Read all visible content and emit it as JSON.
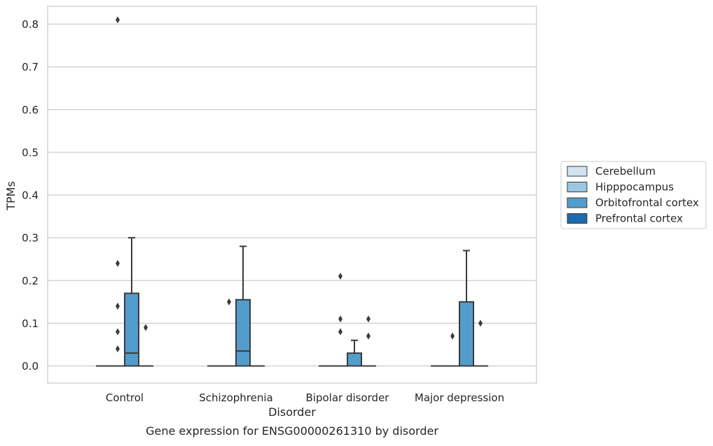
{
  "chart_data": {
    "type": "box",
    "caption": "Gene expression for ENSG00000261310 by disorder",
    "xlabel": "Disorder",
    "ylabel": "TPMs",
    "ylim": [
      -0.04,
      0.855
    ],
    "yticks": [
      0.0,
      0.1,
      0.2,
      0.3,
      0.4,
      0.5,
      0.6,
      0.7,
      0.8
    ],
    "ytick_labels": [
      "0.0",
      "0.1",
      "0.2",
      "0.3",
      "0.4",
      "0.5",
      "0.6",
      "0.7",
      "0.8"
    ],
    "grid": true,
    "legend_position": "outside-right",
    "categories": [
      "Control",
      "Schizophrenia",
      "Bipolar disorder",
      "Major depression"
    ],
    "series": [
      {
        "name": "Cerebellum",
        "color": "#d1e3f3",
        "boxes": [
          {
            "q1": 0,
            "median": 0,
            "q3": 0,
            "whisker_low": 0,
            "whisker_high": 0,
            "outliers": []
          },
          {
            "q1": 0,
            "median": 0,
            "q3": 0,
            "whisker_low": 0,
            "whisker_high": 0,
            "outliers": []
          },
          {
            "q1": 0,
            "median": 0,
            "q3": 0,
            "whisker_low": 0,
            "whisker_high": 0,
            "outliers": []
          },
          {
            "q1": 0,
            "median": 0,
            "q3": 0,
            "whisker_low": 0,
            "whisker_high": 0,
            "outliers": []
          }
        ]
      },
      {
        "name": "Hipppocampus",
        "color": "#9ac8e1",
        "boxes": [
          {
            "q1": 0,
            "median": 0,
            "q3": 0,
            "whisker_low": 0,
            "whisker_high": 0,
            "outliers": [
              0.04,
              0.08,
              0.14,
              0.24,
              0.81
            ]
          },
          {
            "q1": 0,
            "median": 0,
            "q3": 0,
            "whisker_low": 0,
            "whisker_high": 0,
            "outliers": [
              0.15
            ]
          },
          {
            "q1": 0,
            "median": 0,
            "q3": 0,
            "whisker_low": 0,
            "whisker_high": 0,
            "outliers": [
              0.08,
              0.11,
              0.21
            ]
          },
          {
            "q1": 0,
            "median": 0,
            "q3": 0,
            "whisker_low": 0,
            "whisker_high": 0,
            "outliers": [
              0.07
            ]
          }
        ]
      },
      {
        "name": "Orbitofrontal cortex",
        "color": "#529dcc",
        "boxes": [
          {
            "q1": 0,
            "median": 0.03,
            "q3": 0.17,
            "whisker_low": 0,
            "whisker_high": 0.3,
            "outliers": []
          },
          {
            "q1": 0,
            "median": 0.035,
            "q3": 0.155,
            "whisker_low": 0,
            "whisker_high": 0.28,
            "outliers": []
          },
          {
            "q1": 0,
            "median": 0,
            "q3": 0.03,
            "whisker_low": 0,
            "whisker_high": 0.06,
            "outliers": []
          },
          {
            "q1": 0,
            "median": 0,
            "q3": 0.15,
            "whisker_low": 0,
            "whisker_high": 0.27,
            "outliers": []
          }
        ]
      },
      {
        "name": "Prefrontal cortex",
        "color": "#1c6aaf",
        "boxes": [
          {
            "q1": 0,
            "median": 0,
            "q3": 0,
            "whisker_low": 0,
            "whisker_high": 0,
            "outliers": [
              0.09
            ]
          },
          {
            "q1": 0,
            "median": 0,
            "q3": 0,
            "whisker_low": 0,
            "whisker_high": 0,
            "outliers": []
          },
          {
            "q1": 0,
            "median": 0,
            "q3": 0,
            "whisker_low": 0,
            "whisker_high": 0,
            "outliers": [
              0.07,
              0.11
            ]
          },
          {
            "q1": 0,
            "median": 0,
            "q3": 0,
            "whisker_low": 0,
            "whisker_high": 0,
            "outliers": [
              0.1
            ]
          }
        ]
      }
    ]
  }
}
